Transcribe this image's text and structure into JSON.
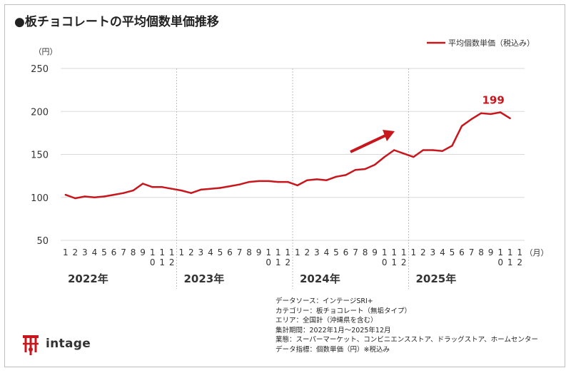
{
  "title": "●板チョコレートの平均個数単価推移",
  "logo_text": "intage",
  "source_lines": [
    "データソース：インテージSRI+",
    "カテゴリー：板チョコレート（無垢タイプ）",
    "エリア：全国計（沖縄県を含む）",
    "集計期間：2022年1月～2025年12月",
    "業態：スーパーマーケット、コンビニエンスストア、ドラッグストア、ホームセンター",
    "データ指標：個数単価（円）※税込み"
  ],
  "colors": {
    "series": "#c8161d",
    "grid": "#d9d9d9",
    "year_divider": "#bfbfbf",
    "axis_text": "#333333"
  },
  "chart_data": {
    "type": "line",
    "ylabel": "（円）",
    "xlabel": "（月）",
    "ylim": [
      50,
      250
    ],
    "yticks": [
      50,
      100,
      150,
      200,
      250
    ],
    "grid": true,
    "legend": {
      "placement": "top-right"
    },
    "month_labels": [
      "1",
      "2",
      "3",
      "4",
      "5",
      "6",
      "7",
      "8",
      "9",
      "10",
      "11",
      "12"
    ],
    "years": [
      "2022年",
      "2023年",
      "2024年",
      "2025年"
    ],
    "series": [
      {
        "name": "平均個数単価（税込み）",
        "values": [
          103,
          99,
          101,
          100,
          101,
          103,
          105,
          108,
          116,
          112,
          112,
          110,
          108,
          105,
          109,
          110,
          111,
          113,
          115,
          118,
          119,
          119,
          118,
          118,
          114,
          120,
          121,
          120,
          124,
          126,
          132,
          133,
          138,
          147,
          155,
          151,
          147,
          155,
          155,
          154,
          160,
          183,
          191,
          198,
          197,
          199,
          192,
          null
        ]
      }
    ],
    "annotations": [
      {
        "label": "199",
        "x_index": 45
      }
    ],
    "trend_arrow": true
  }
}
